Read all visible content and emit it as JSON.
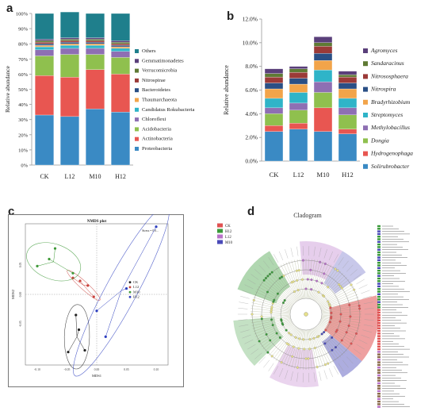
{
  "panels": {
    "a": "a",
    "b": "b",
    "c": "c",
    "d": "d"
  },
  "chart_data": [
    {
      "id": "a",
      "type": "bar",
      "stacked": true,
      "ylabel": "Relative abundance",
      "ylim": [
        0,
        100
      ],
      "yticks": [
        "0%",
        "10%",
        "20%",
        "30%",
        "40%",
        "50%",
        "60%",
        "70%",
        "80%",
        "90%",
        "100%"
      ],
      "categories": [
        "CK",
        "L12",
        "M10",
        "H12"
      ],
      "legend_position": "right",
      "series": [
        {
          "name": "Proteobacteria",
          "color": "#3a8ac4",
          "values": [
            33,
            32,
            37,
            35
          ]
        },
        {
          "name": "Actinobacteria",
          "color": "#e85651",
          "values": [
            26,
            26,
            26,
            25
          ]
        },
        {
          "name": "Acidobacteria",
          "color": "#8fc04e",
          "values": [
            13,
            15,
            10,
            11
          ]
        },
        {
          "name": "Chloroflexi",
          "color": "#8e6fb3",
          "values": [
            4,
            4,
            4,
            4
          ]
        },
        {
          "name": "Candidatus Rokubacteria",
          "color": "#2fb4c8",
          "values": [
            2,
            2,
            2,
            2
          ]
        },
        {
          "name": "Thaumarchaeota",
          "color": "#f2a44a",
          "values": [
            1,
            1,
            1,
            1
          ]
        },
        {
          "name": "Bacteroidetes",
          "color": "#2a4f85",
          "values": [
            1,
            1,
            1,
            1
          ]
        },
        {
          "name": "Nitrospirae",
          "color": "#9b3a38",
          "values": [
            1,
            1,
            1,
            1
          ]
        },
        {
          "name": "Verrucomicrobia",
          "color": "#5f7a34",
          "values": [
            1,
            1,
            1,
            1
          ]
        },
        {
          "name": "Gemmatimonadetes",
          "color": "#5a3f7a",
          "values": [
            1,
            1,
            1,
            1
          ]
        },
        {
          "name": "Others",
          "color": "#1f7f8c",
          "values": [
            17,
            17,
            16,
            18
          ]
        }
      ]
    },
    {
      "id": "b",
      "type": "bar",
      "stacked": true,
      "ylabel": "Relative abundance",
      "ylim": [
        0,
        12
      ],
      "yticks": [
        "0.0%",
        "2.0%",
        "4.0%",
        "6.0%",
        "8.0%",
        "10.0%",
        "12.0%"
      ],
      "categories": [
        "CK",
        "L12",
        "M10",
        "H12"
      ],
      "legend_position": "right",
      "series": [
        {
          "name": "Solirubrobacter",
          "color": "#3a8ac4",
          "values": [
            2.5,
            2.7,
            2.5,
            2.3
          ]
        },
        {
          "name": "Hydrogenophaga",
          "color": "#e85651",
          "values": [
            0.5,
            0.5,
            2.0,
            0.4
          ]
        },
        {
          "name": "Dongia",
          "color": "#8fc04e",
          "values": [
            1.0,
            1.1,
            1.3,
            1.2
          ]
        },
        {
          "name": "Methylobacillus",
          "color": "#8e6fb3",
          "values": [
            0.5,
            0.6,
            0.9,
            0.6
          ]
        },
        {
          "name": "Streptomyces",
          "color": "#2fb4c8",
          "values": [
            0.8,
            0.9,
            1.0,
            0.8
          ]
        },
        {
          "name": "Bradyrhizobium",
          "color": "#f2a44a",
          "values": [
            0.8,
            0.7,
            0.8,
            0.8
          ]
        },
        {
          "name": "Nitrospira",
          "color": "#2a4f85",
          "values": [
            0.5,
            0.5,
            0.6,
            0.5
          ]
        },
        {
          "name": "Nitrososphaera",
          "color": "#9b3a38",
          "values": [
            0.5,
            0.5,
            0.6,
            0.5
          ]
        },
        {
          "name": "Sandaracinus",
          "color": "#5f7a34",
          "values": [
            0.3,
            0.3,
            0.3,
            0.2
          ]
        },
        {
          "name": "Agromyces",
          "color": "#5a3f7a",
          "values": [
            0.4,
            0.2,
            0.5,
            0.3
          ]
        }
      ]
    },
    {
      "id": "c",
      "type": "scatter",
      "title": "NMDS plot",
      "xlabel": "MDS1",
      "ylabel": "MDS2",
      "stress": "Stress = 0.0...",
      "xlim": [
        -0.12,
        0.12
      ],
      "ylim": [
        -0.12,
        0.12
      ],
      "xticks": [
        -0.1,
        -0.05,
        0.0,
        0.05,
        0.1
      ],
      "yticks": [
        0.05,
        0.0,
        -0.05
      ],
      "legend_position": "right",
      "series": [
        {
          "name": "CK",
          "color": "#222222",
          "points": [
            [
              -0.048,
              -0.098
            ],
            [
              -0.035,
              -0.035
            ],
            [
              -0.02,
              -0.095
            ],
            [
              -0.03,
              -0.06
            ]
          ]
        },
        {
          "name": "L12",
          "color": "#c9413b",
          "points": [
            [
              -0.028,
              0.023
            ],
            [
              -0.015,
              0.015
            ],
            [
              -0.005,
              -0.004
            ],
            [
              -0.04,
              0.028
            ]
          ]
        },
        {
          "name": "M10",
          "color": "#3f9a38",
          "points": [
            [
              -0.1,
              0.048
            ],
            [
              -0.07,
              0.078
            ],
            [
              -0.04,
              0.036
            ],
            [
              -0.08,
              0.06
            ]
          ]
        },
        {
          "name": "H12",
          "color": "#2d3fbf",
          "points": [
            [
              0.0,
              -0.028
            ],
            [
              0.015,
              -0.072
            ],
            [
              0.1,
              0.115
            ],
            [
              0.05,
              0.01
            ]
          ]
        }
      ]
    }
  ],
  "cladogram": {
    "title": "Cladogram",
    "legend": [
      {
        "name": "CK",
        "color": "#e05252"
      },
      {
        "name": "H12",
        "color": "#3a9a3a"
      },
      {
        "name": "L12",
        "color": "#b872c8"
      },
      {
        "name": "M10",
        "color": "#4a4ab8"
      }
    ]
  }
}
